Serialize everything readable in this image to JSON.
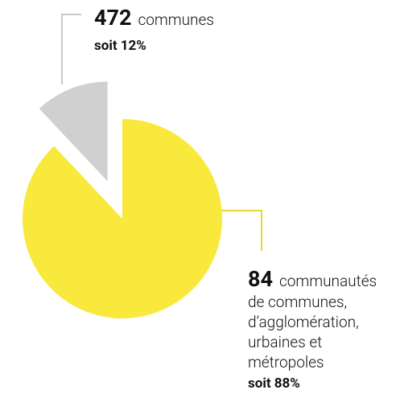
{
  "chart_data": {
    "type": "pie",
    "values": [
      12,
      88
    ],
    "value_labels": [
      "soit 12%",
      "soit 88%"
    ],
    "counts": [
      472,
      84
    ],
    "labels": [
      [
        "communes"
      ],
      [
        "communautés",
        "de communes,",
        "d’agglomération,",
        "urbaines et",
        "métropoles"
      ]
    ],
    "colors": [
      "#d0d0d0",
      "#f9e93c"
    ]
  }
}
